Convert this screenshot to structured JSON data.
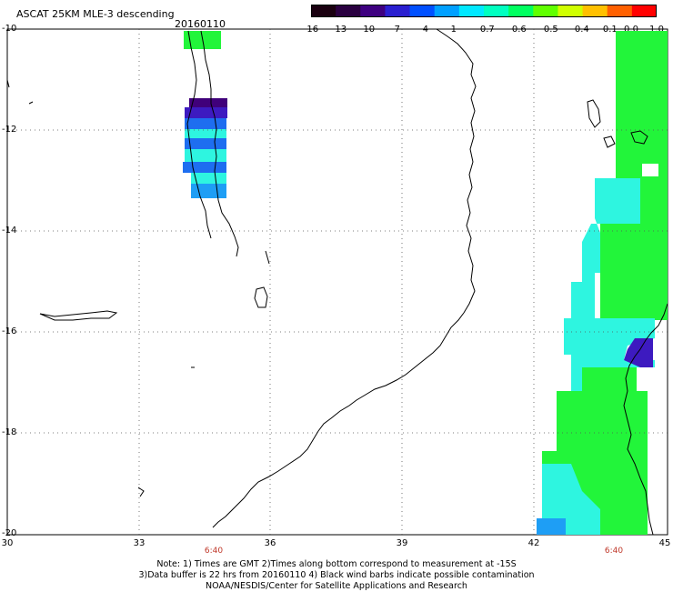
{
  "header": {
    "title": "ASCAT 25KM MLE-3 descending",
    "date": "20160110"
  },
  "colorbar": {
    "labels": [
      "-16",
      "-13",
      "-10",
      "-7",
      "-4",
      "-1",
      "-0.7",
      "-0.6",
      "-0.5",
      "-0.4",
      "-0.1",
      "0.0",
      "1.0"
    ],
    "colors": [
      "#1a0010",
      "#2a0040",
      "#3e0080",
      "#2a1fd0",
      "#0050ff",
      "#00a0ff",
      "#00e8ff",
      "#00ffc0",
      "#00ff60",
      "#60ff00",
      "#d0ff00",
      "#ffc000",
      "#ff6000",
      "#ff0000"
    ]
  },
  "axes": {
    "lat_labels": [
      "-10",
      "-12",
      "-14",
      "-16",
      "-18",
      "-20"
    ],
    "lon_labels": [
      "30",
      "33",
      "36",
      "39",
      "42",
      "45"
    ]
  },
  "swaths": {
    "time_labels": [
      "6:40",
      "6:40"
    ]
  },
  "notes": {
    "line1": "Note: 1) Times are GMT 2)Times along bottom correspond to measurement at -15S",
    "line2": "3)Data buffer is 22 hrs from 20160110 4) Black wind barbs indicate possible contamination",
    "line3": "NOAA/NESDIS/Center for Satellite Applications and Research"
  },
  "colors": {
    "green": "#22f53a",
    "cyan": "#2ef5e0",
    "blue": "#1e6ef0",
    "indigo": "#3d1ac0",
    "purple": "#40007a"
  }
}
